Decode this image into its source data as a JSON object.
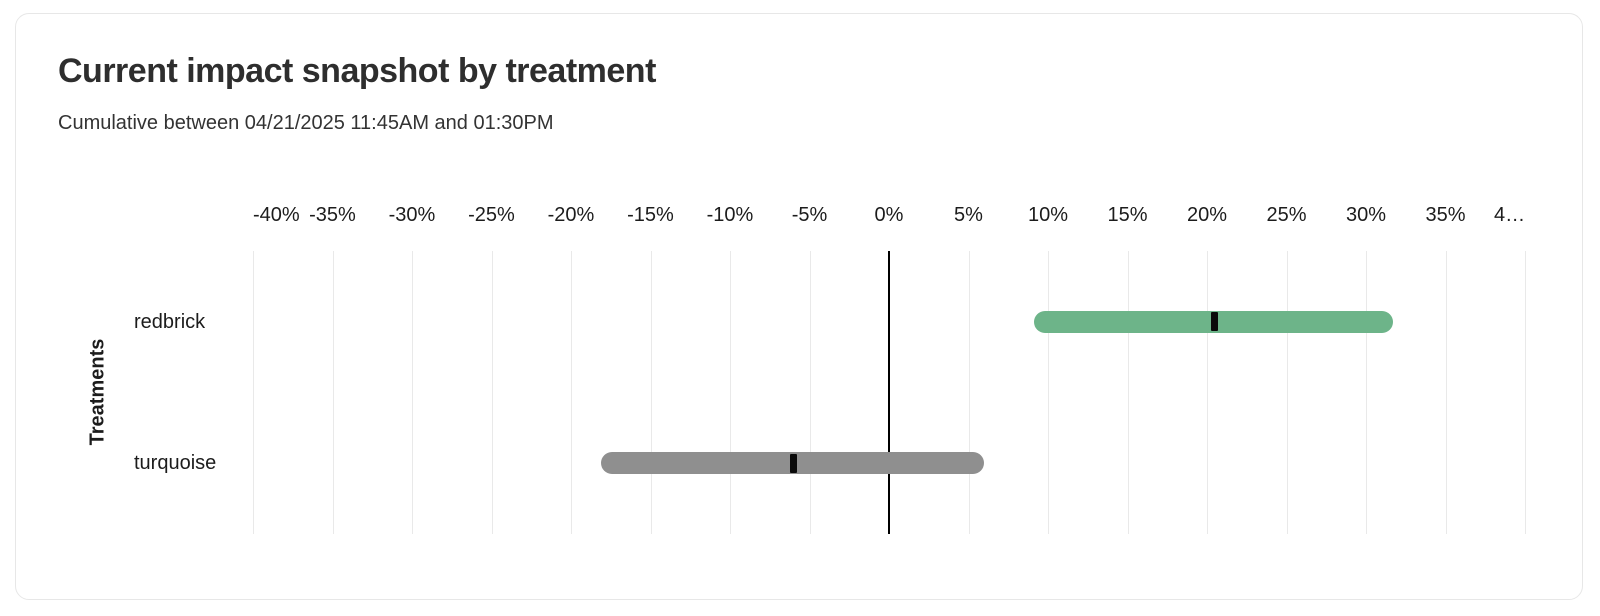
{
  "page": {
    "background": "#ffffff"
  },
  "card": {
    "border_color": "#e7e7e7"
  },
  "chart_data": {
    "type": "bar",
    "variant": "horizontal_range_bar_with_point_marker",
    "title": "Current impact snapshot by treatment",
    "subtitle": "Cumulative between 04/21/2025 11:45AM and 01:30PM",
    "xlabel": "",
    "ylabel": "Treatments",
    "xlim": [
      -40,
      40
    ],
    "x_tick_values": [
      -40,
      -35,
      -30,
      -25,
      -20,
      -15,
      -10,
      -5,
      0,
      5,
      10,
      15,
      20,
      25,
      30,
      35,
      40
    ],
    "x_tick_labels": [
      "-40%",
      "-35%",
      "-30%",
      "-25%",
      "-20%",
      "-15%",
      "-10%",
      "-5%",
      "0%",
      "5%",
      "10%",
      "15%",
      "20%",
      "25%",
      "30%",
      "35%",
      "4…"
    ],
    "grid": "vertical",
    "zero_line": true,
    "legend": "none",
    "categories": [
      "redbrick",
      "turquoise"
    ],
    "series": [
      {
        "name": "redbrick",
        "low_pct": 9.1,
        "high_pct": 31.7,
        "point_pct": 20.5,
        "color": "#6db489"
      },
      {
        "name": "turquoise",
        "low_pct": -18.1,
        "high_pct": 6.0,
        "point_pct": -6.0,
        "color": "#8f8f8f"
      }
    ],
    "colors": {
      "marker": "#0a0a0a",
      "gridline": "#e9e9e9",
      "zero_line": "#000000"
    }
  }
}
